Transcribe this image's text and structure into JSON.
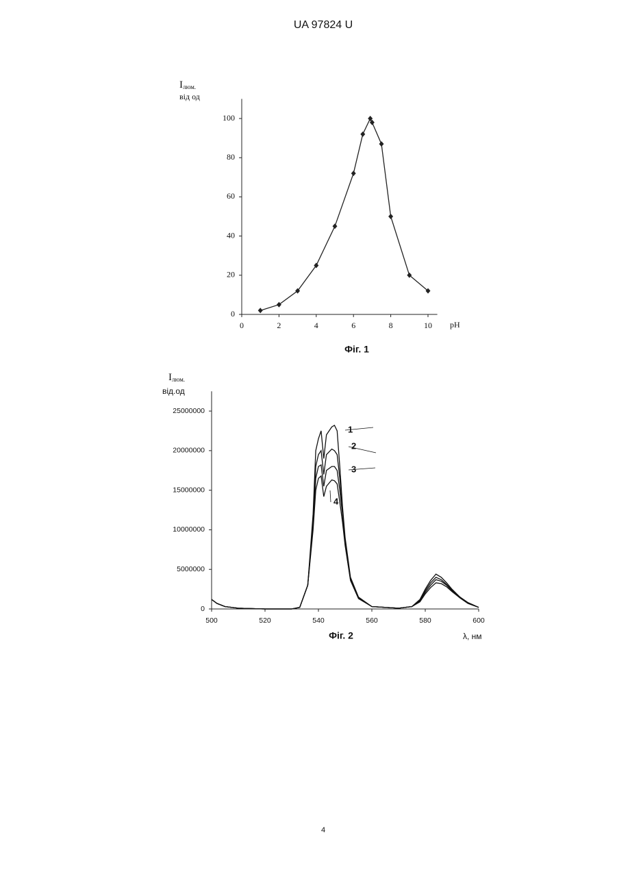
{
  "header": "UA   97824   U",
  "page_number": "4",
  "chart_data": [
    {
      "type": "line",
      "markers": true,
      "color": "#222222",
      "ylabel": "I",
      "ylabel_sub": "люм.",
      "ylabel_unit": "від од",
      "xlabel": "pH",
      "caption": "Фіг. 1",
      "xlim": [
        0,
        10.5
      ],
      "xticks": [
        0,
        2,
        4,
        6,
        8,
        10
      ],
      "ylim": [
        0,
        110
      ],
      "yticks": [
        0,
        20,
        40,
        60,
        80,
        100
      ],
      "x": [
        1,
        2,
        3,
        4,
        5,
        6,
        6.5,
        6.9,
        7,
        7.5,
        8,
        9,
        10
      ],
      "series": [
        {
          "name": null,
          "color": "#222222",
          "values": [
            2,
            5,
            12,
            25,
            45,
            72,
            92,
            100,
            98,
            87,
            50,
            20,
            12
          ]
        }
      ]
    },
    {
      "type": "line",
      "markers": false,
      "color": "#111111",
      "ylabel": "I",
      "ylabel_sub": "люм.",
      "ylabel_unit": "від.од",
      "xlabel": "λ, нм",
      "caption": "Фіг. 2",
      "xlim": [
        500,
        600
      ],
      "xticks": [
        500,
        520,
        540,
        560,
        580,
        600
      ],
      "ylim": [
        0,
        27500000
      ],
      "yticks": [
        0,
        5000000,
        10000000,
        15000000,
        20000000,
        25000000
      ],
      "x": [
        500,
        502,
        505,
        510,
        520,
        530,
        533,
        536,
        538,
        539,
        540,
        541,
        542,
        543,
        545,
        546,
        547,
        548,
        549,
        550,
        552,
        555,
        560,
        570,
        575,
        578,
        580,
        582,
        584,
        586,
        588,
        590,
        593,
        596,
        600
      ],
      "series": [
        {
          "name": "1",
          "color": "#111111",
          "values": [
            1200000,
            700000,
            300000,
            100000,
            0,
            0,
            200000,
            3000000,
            12000000,
            20000000,
            21500000,
            22500000,
            19000000,
            22000000,
            23000000,
            23200000,
            22500000,
            18000000,
            13000000,
            9000000,
            4000000,
            1500000,
            300000,
            100000,
            300000,
            1200000,
            2500000,
            3600000,
            4400000,
            4000000,
            3300000,
            2500000,
            1500000,
            800000,
            200000
          ]
        },
        {
          "name": "2",
          "color": "#111111",
          "values": [
            1200000,
            700000,
            300000,
            100000,
            0,
            0,
            200000,
            3000000,
            11000000,
            18000000,
            19500000,
            20000000,
            17000000,
            19500000,
            20200000,
            20000000,
            19500000,
            16500000,
            12500000,
            8500000,
            3800000,
            1400000,
            300000,
            100000,
            300000,
            1100000,
            2300000,
            3300000,
            4000000,
            3700000,
            3100000,
            2400000,
            1500000,
            800000,
            200000
          ]
        },
        {
          "name": "3",
          "color": "#111111",
          "values": [
            1200000,
            700000,
            300000,
            100000,
            0,
            0,
            200000,
            3000000,
            10500000,
            16500000,
            18000000,
            18200000,
            15500000,
            17500000,
            18000000,
            18000000,
            17500000,
            15000000,
            12000000,
            8200000,
            3700000,
            1400000,
            300000,
            100000,
            300000,
            1000000,
            2100000,
            3000000,
            3700000,
            3500000,
            3000000,
            2300000,
            1400000,
            700000,
            200000
          ]
        },
        {
          "name": "4",
          "color": "#111111",
          "values": [
            1200000,
            700000,
            300000,
            100000,
            0,
            0,
            200000,
            3000000,
            10000000,
            15000000,
            16500000,
            16800000,
            14200000,
            15500000,
            16300000,
            16200000,
            15800000,
            13500000,
            11000000,
            8000000,
            3600000,
            1300000,
            300000,
            100000,
            300000,
            900000,
            1900000,
            2700000,
            3300000,
            3200000,
            2800000,
            2200000,
            1400000,
            700000,
            200000
          ]
        }
      ]
    }
  ]
}
